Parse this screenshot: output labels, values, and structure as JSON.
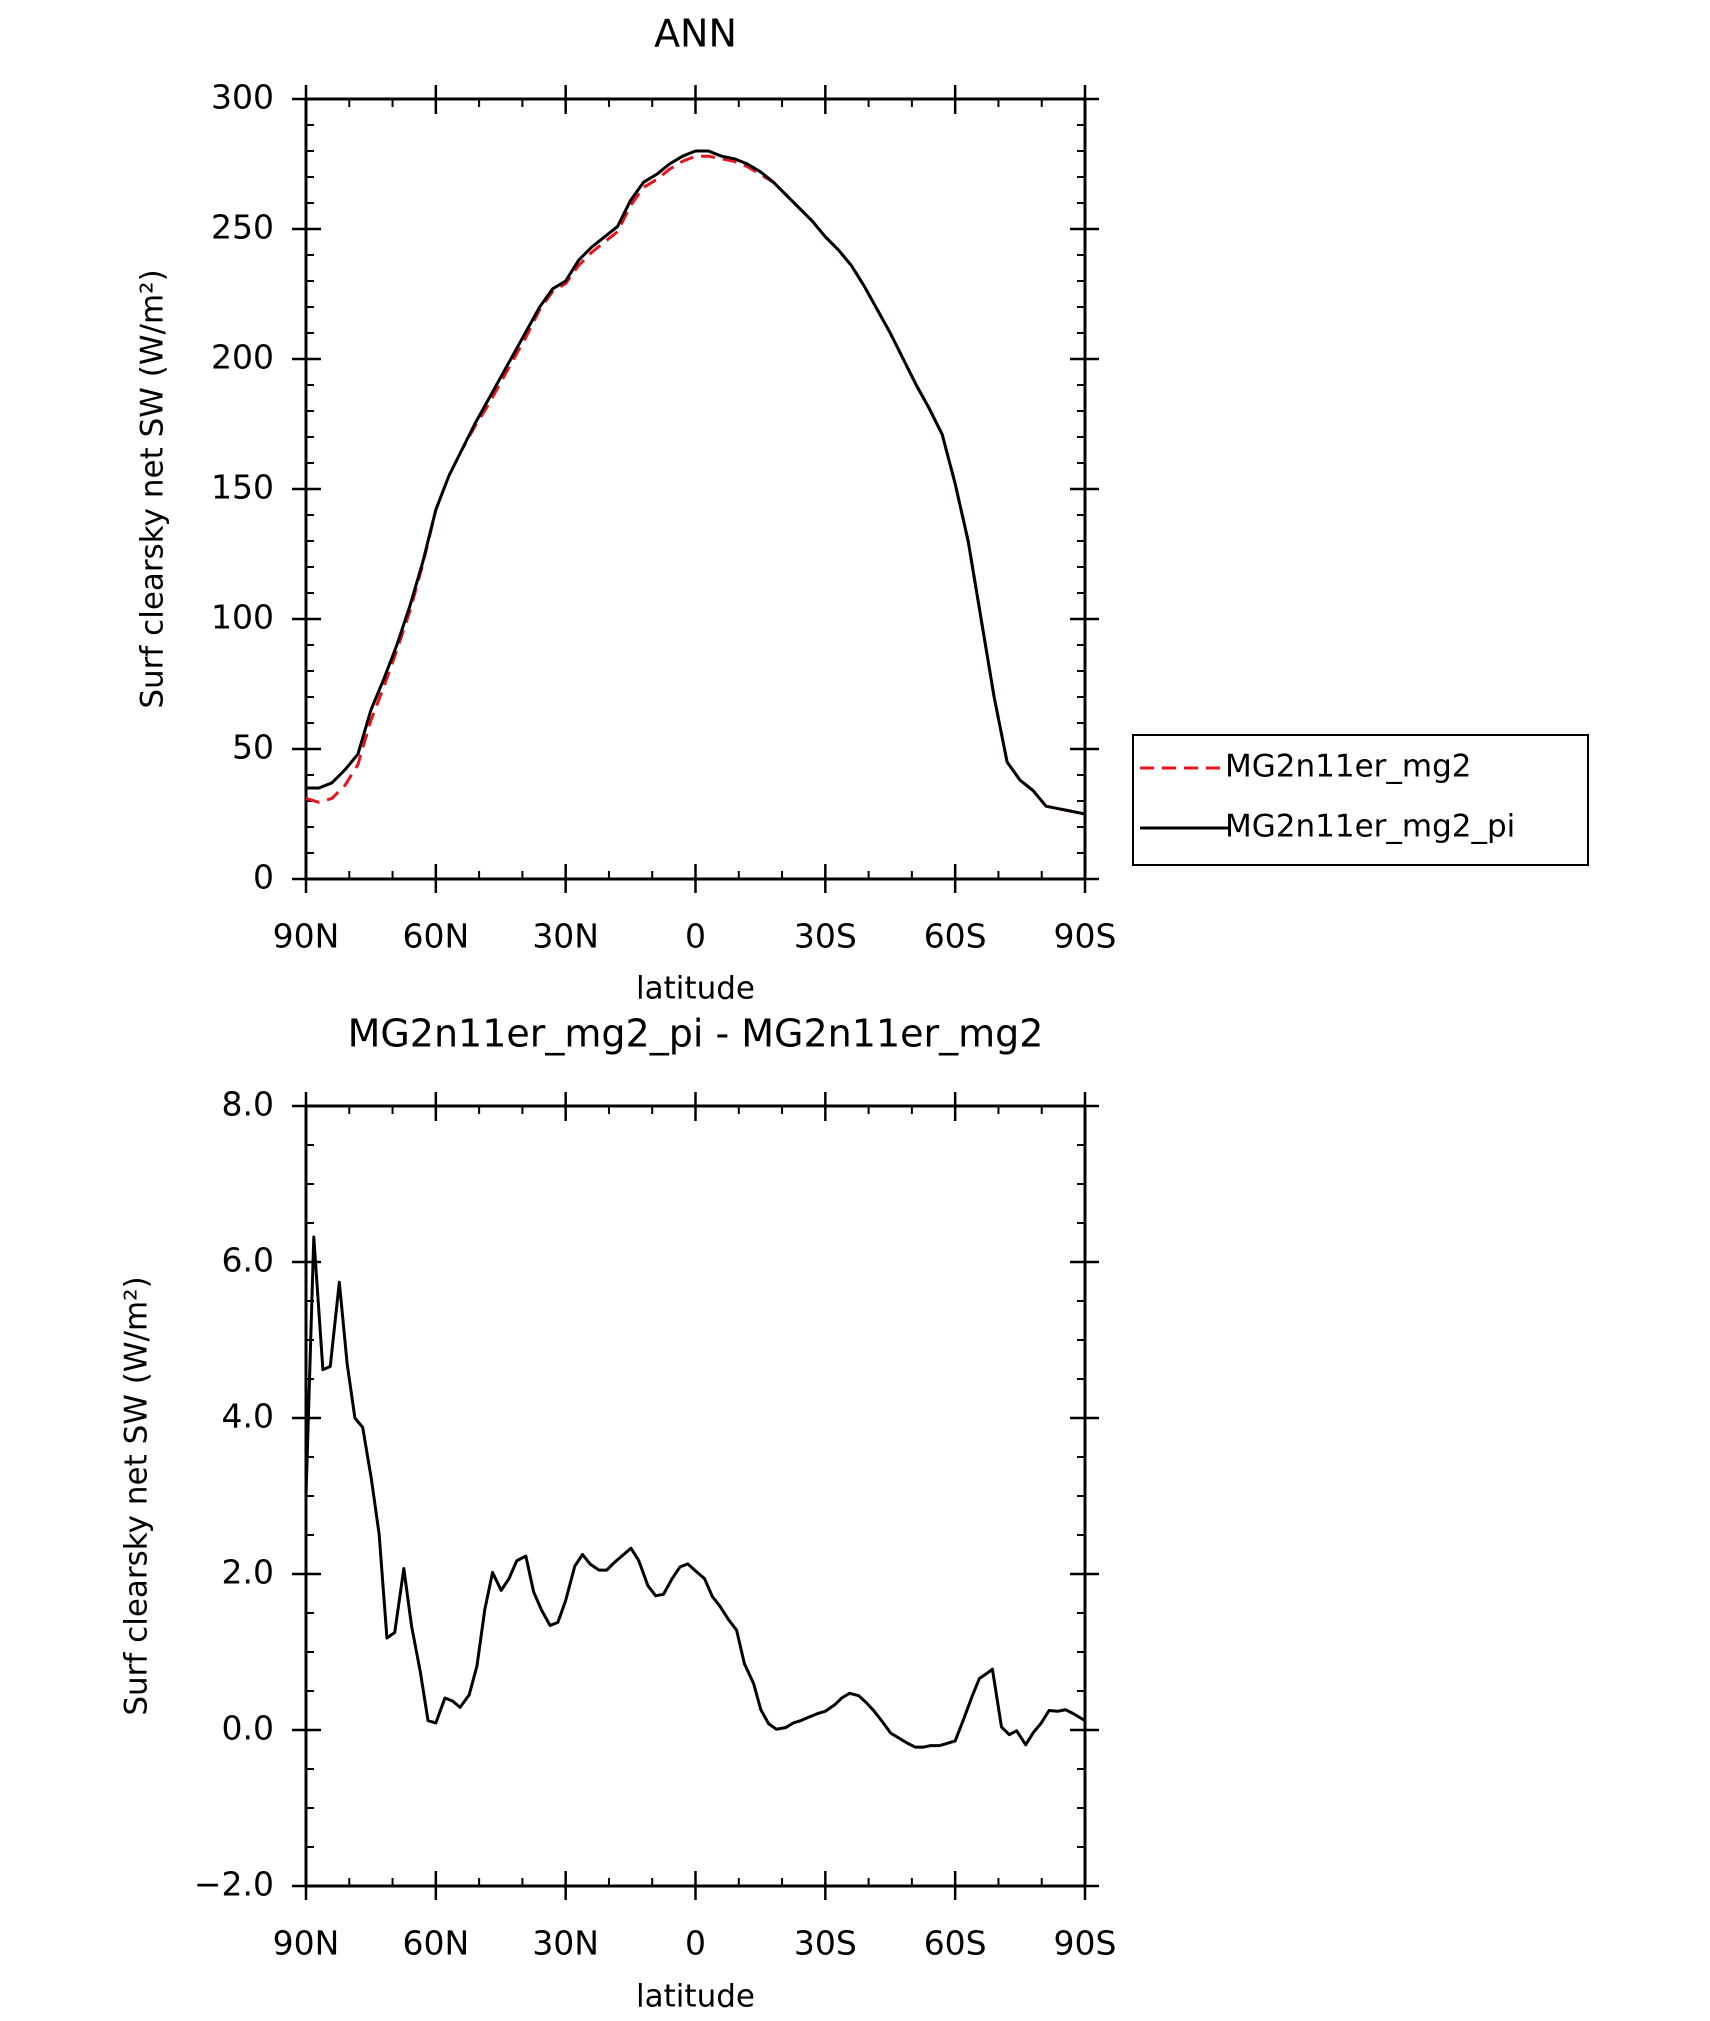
{
  "chart_data": [
    {
      "type": "line",
      "title": "ANN",
      "x_label": "latitude",
      "y_label": "Surf clearsky net SW (W/m²)",
      "x": [
        90,
        87,
        84,
        81,
        78,
        75,
        72,
        69,
        66,
        63,
        60,
        57,
        54,
        51,
        48,
        45,
        42,
        39,
        36,
        33,
        30,
        27,
        24,
        21,
        18,
        15,
        12,
        9,
        6,
        3,
        0,
        -3,
        -6,
        -9,
        -12,
        -15,
        -18,
        -21,
        -24,
        -27,
        -30,
        -33,
        -36,
        -39,
        -42,
        -45,
        -48,
        -51,
        -54,
        -57,
        -60,
        -63,
        -66,
        -69,
        -72,
        -75,
        -78,
        -81,
        -84,
        -87,
        -90
      ],
      "series": [
        {
          "name": "MG2n11er_mg2",
          "color": "#e8141a",
          "dash": true,
          "values": [
            31,
            29.5,
            31,
            36,
            44,
            61,
            74,
            88,
            103,
            121,
            142,
            155,
            165,
            174,
            182,
            191,
            200,
            209,
            219,
            226,
            229,
            236,
            241,
            245,
            249,
            259,
            266,
            269,
            273,
            276,
            278,
            278,
            277,
            276,
            274,
            271,
            268,
            263,
            258,
            253,
            247,
            242,
            236,
            228,
            219,
            210,
            200,
            190,
            181,
            171,
            152,
            130,
            100,
            70,
            45,
            38,
            34,
            28,
            27,
            26,
            25
          ]
        },
        {
          "name": "MG2n11er_mg2_pi",
          "color": "#000000",
          "dash": false,
          "values": [
            35,
            35,
            37,
            42,
            48,
            65,
            77,
            90,
            105,
            122,
            142,
            155,
            165,
            175,
            184,
            193,
            202,
            211,
            220,
            227,
            230,
            238,
            243,
            247,
            251,
            261,
            268,
            271,
            275,
            278,
            280,
            280,
            278,
            277,
            275,
            272,
            268,
            263,
            258,
            253,
            247,
            242,
            236,
            228,
            219,
            210,
            200,
            190,
            181,
            171,
            152,
            130,
            100,
            70,
            45,
            38,
            34,
            28,
            27,
            26,
            25
          ]
        }
      ],
      "xlim": [
        90,
        -90
      ],
      "xticks": [
        {
          "value": 90,
          "label": "90N"
        },
        {
          "value": 60,
          "label": "60N"
        },
        {
          "value": 30,
          "label": "30N"
        },
        0,
        {
          "value": -30,
          "label": "30S"
        },
        {
          "value": -60,
          "label": "60S"
        },
        {
          "value": -90,
          "label": "90S"
        }
      ],
      "ylim": [
        0,
        300
      ],
      "yticks": [
        0,
        50,
        100,
        150,
        200,
        250,
        300
      ],
      "legend": "right"
    },
    {
      "type": "line",
      "title": "MG2n11er_mg2_pi - MG2n11er_mg2",
      "x_label": "latitude",
      "y_label": "Surf clearsky net SW (W/m²)",
      "x": [
        90,
        88.2,
        86.1,
        84.4,
        82.3,
        80.5,
        78.7,
        76.9,
        74.9,
        73.1,
        71.3,
        69.5,
        67.4,
        65.6,
        63.6,
        61.8,
        60,
        57.9,
        56.1,
        54.4,
        52.3,
        50.5,
        48.7,
        46.9,
        44.9,
        43.1,
        41.3,
        39.2,
        37.4,
        35.6,
        33.6,
        31.8,
        30,
        27.9,
        26.1,
        24.4,
        22.3,
        20.5,
        18.7,
        16.6,
        14.9,
        13.1,
        11,
        9.2,
        7.4,
        5.4,
        3.6,
        1.8,
        0,
        -2.1,
        -3.9,
        -5.6,
        -7.7,
        -9.5,
        -11.3,
        -13.4,
        -15.1,
        -16.9,
        -18.7,
        -20.8,
        -22.6,
        -24.3,
        -26.4,
        -28.2,
        -30,
        -32.1,
        -33.8,
        -35.6,
        -37.7,
        -39.5,
        -41.3,
        -43.4,
        -45.1,
        -46.9,
        -49,
        -50.8,
        -52.6,
        -54.3,
        -56.4,
        -58.2,
        -60,
        -62.1,
        -63.9,
        -65.6,
        -67.7,
        -68.6,
        -70.7,
        -72.5,
        -74.2,
        -76.3,
        -78.1,
        -79.9,
        -81.7,
        -83.7,
        -85.5,
        -87.3,
        -90
      ],
      "series": [
        {
          "color": "#000000",
          "dash": false,
          "values": [
            3.0,
            6.32,
            4.62,
            4.66,
            5.74,
            4.7,
            4.0,
            3.88,
            3.22,
            2.51,
            1.18,
            1.25,
            2.07,
            1.33,
            0.75,
            0.12,
            0.09,
            0.41,
            0.37,
            0.29,
            0.45,
            0.82,
            1.54,
            2.02,
            1.79,
            1.94,
            2.17,
            2.23,
            1.77,
            1.54,
            1.34,
            1.38,
            1.66,
            2.1,
            2.25,
            2.13,
            2.05,
            2.05,
            2.15,
            2.25,
            2.33,
            2.17,
            1.85,
            1.72,
            1.74,
            1.94,
            2.09,
            2.13,
            2.04,
            1.94,
            1.71,
            1.59,
            1.41,
            1.28,
            0.85,
            0.6,
            0.26,
            0.08,
            0.01,
            0.03,
            0.09,
            0.12,
            0.17,
            0.21,
            0.24,
            0.32,
            0.41,
            0.47,
            0.44,
            0.35,
            0.24,
            0.09,
            -0.04,
            -0.1,
            -0.17,
            -0.22,
            -0.22,
            -0.2,
            -0.2,
            -0.17,
            -0.14,
            0.16,
            0.43,
            0.66,
            0.74,
            0.78,
            0.04,
            -0.06,
            -0.01,
            -0.19,
            -0.03,
            0.09,
            0.25,
            0.24,
            0.26,
            0.21,
            0.12
          ]
        }
      ],
      "xlim": [
        90,
        -90
      ],
      "xticks": [
        {
          "value": 90,
          "label": "90N"
        },
        {
          "value": 60,
          "label": "60N"
        },
        {
          "value": 30,
          "label": "30N"
        },
        0,
        {
          "value": -30,
          "label": "30S"
        },
        {
          "value": -60,
          "label": "60S"
        },
        {
          "value": -90,
          "label": "90S"
        }
      ],
      "ylim": [
        -2,
        8
      ],
      "yticks": [
        {
          "value": -2,
          "label": "−2.0"
        },
        {
          "value": 0,
          "label": "0.0"
        },
        {
          "value": 2,
          "label": "2.0"
        },
        {
          "value": 4,
          "label": "4.0"
        },
        {
          "value": 6,
          "label": "6.0"
        },
        {
          "value": 8,
          "label": "8.0"
        }
      ]
    }
  ]
}
